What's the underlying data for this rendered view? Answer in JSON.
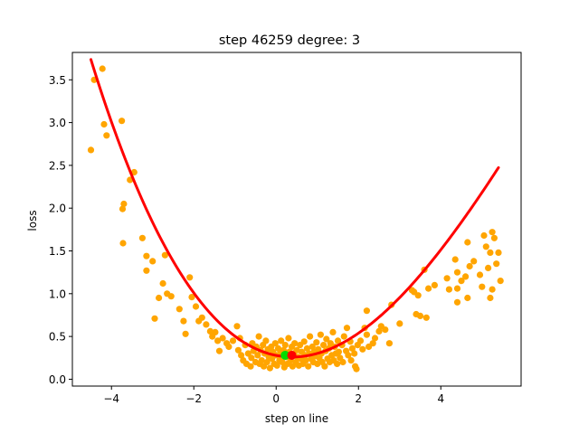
{
  "chart_data": {
    "type": "scatter",
    "title": "step 46259   degree: 3",
    "xlabel": "step on line",
    "ylabel": "loss",
    "xlim": [
      -4.95,
      5.95
    ],
    "ylim": [
      -0.08,
      3.82
    ],
    "xticks": [
      -4,
      -2,
      0,
      2,
      4
    ],
    "yticks": [
      0.0,
      0.5,
      1.0,
      1.5,
      2.0,
      2.5,
      3.0,
      3.5
    ],
    "grid": false,
    "colors": {
      "points": "#ffa500",
      "fit": "#ff0000",
      "current": "#00dd00",
      "minimum": "#ff0000"
    },
    "fit_curve": {
      "degree": 3,
      "coefficients": [
        0.2784,
        -0.0946,
        0.1239,
        -0.00576
      ],
      "x_range": [
        -4.5,
        5.4
      ]
    },
    "current_point": {
      "x": 0.22,
      "y": 0.28
    },
    "min_point": {
      "x": 0.38,
      "y": 0.28
    },
    "points": [
      [
        -4.5,
        2.68
      ],
      [
        -4.42,
        3.5
      ],
      [
        -4.22,
        3.63
      ],
      [
        -4.18,
        2.98
      ],
      [
        -4.12,
        2.85
      ],
      [
        -3.75,
        3.02
      ],
      [
        -3.73,
        1.99
      ],
      [
        -3.7,
        2.05
      ],
      [
        -3.72,
        1.59
      ],
      [
        -3.55,
        2.33
      ],
      [
        -3.45,
        2.42
      ],
      [
        -3.25,
        1.65
      ],
      [
        -3.15,
        1.44
      ],
      [
        -3.15,
        1.27
      ],
      [
        -3.0,
        1.38
      ],
      [
        -2.95,
        0.71
      ],
      [
        -2.85,
        0.95
      ],
      [
        -2.7,
        1.45
      ],
      [
        -2.65,
        1.0
      ],
      [
        -2.75,
        1.12
      ],
      [
        -2.55,
        0.97
      ],
      [
        -2.35,
        0.82
      ],
      [
        -2.25,
        0.68
      ],
      [
        -2.2,
        0.53
      ],
      [
        -2.1,
        1.19
      ],
      [
        -2.05,
        0.96
      ],
      [
        -1.95,
        0.85
      ],
      [
        -1.88,
        0.68
      ],
      [
        -1.8,
        0.72
      ],
      [
        -1.7,
        0.64
      ],
      [
        -1.6,
        0.56
      ],
      [
        -1.55,
        0.5
      ],
      [
        -1.48,
        0.55
      ],
      [
        -1.42,
        0.45
      ],
      [
        -1.38,
        0.33
      ],
      [
        -1.3,
        0.48
      ],
      [
        -1.2,
        0.42
      ],
      [
        -1.15,
        0.38
      ],
      [
        -1.05,
        0.45
      ],
      [
        -0.95,
        0.62
      ],
      [
        -0.92,
        0.34
      ],
      [
        -0.88,
        0.48
      ],
      [
        -0.85,
        0.28
      ],
      [
        -0.8,
        0.22
      ],
      [
        -0.75,
        0.4
      ],
      [
        -0.72,
        0.18
      ],
      [
        -0.68,
        0.3
      ],
      [
        -0.62,
        0.15
      ],
      [
        -0.6,
        0.25
      ],
      [
        -0.58,
        0.42
      ],
      [
        -0.55,
        0.33
      ],
      [
        -0.5,
        0.2
      ],
      [
        -0.48,
        0.38
      ],
      [
        -0.45,
        0.28
      ],
      [
        -0.42,
        0.5
      ],
      [
        -0.4,
        0.18
      ],
      [
        -0.38,
        0.34
      ],
      [
        -0.35,
        0.22
      ],
      [
        -0.32,
        0.4
      ],
      [
        -0.3,
        0.15
      ],
      [
        -0.28,
        0.3
      ],
      [
        -0.25,
        0.45
      ],
      [
        -0.22,
        0.2
      ],
      [
        -0.2,
        0.35
      ],
      [
        -0.18,
        0.26
      ],
      [
        -0.15,
        0.13
      ],
      [
        -0.12,
        0.38
      ],
      [
        -0.1,
        0.24
      ],
      [
        -0.08,
        0.32
      ],
      [
        -0.05,
        0.18
      ],
      [
        -0.02,
        0.42
      ],
      [
        0.0,
        0.28
      ],
      [
        0.02,
        0.16
      ],
      [
        0.05,
        0.36
      ],
      [
        0.08,
        0.22
      ],
      [
        0.1,
        0.3
      ],
      [
        0.12,
        0.45
      ],
      [
        0.15,
        0.2
      ],
      [
        0.18,
        0.34
      ],
      [
        0.2,
        0.14
      ],
      [
        0.22,
        0.4
      ],
      [
        0.25,
        0.26
      ],
      [
        0.28,
        0.18
      ],
      [
        0.3,
        0.48
      ],
      [
        0.32,
        0.32
      ],
      [
        0.35,
        0.22
      ],
      [
        0.38,
        0.38
      ],
      [
        0.4,
        0.15
      ],
      [
        0.42,
        0.3
      ],
      [
        0.45,
        0.42
      ],
      [
        0.48,
        0.2
      ],
      [
        0.5,
        0.34
      ],
      [
        0.52,
        0.26
      ],
      [
        0.55,
        0.16
      ],
      [
        0.58,
        0.4
      ],
      [
        0.6,
        0.24
      ],
      [
        0.62,
        0.32
      ],
      [
        0.65,
        0.18
      ],
      [
        0.68,
        0.44
      ],
      [
        0.7,
        0.28
      ],
      [
        0.72,
        0.22
      ],
      [
        0.75,
        0.36
      ],
      [
        0.78,
        0.15
      ],
      [
        0.8,
        0.3
      ],
      [
        0.82,
        0.5
      ],
      [
        0.85,
        0.24
      ],
      [
        0.88,
        0.38
      ],
      [
        0.9,
        0.2
      ],
      [
        0.92,
        0.32
      ],
      [
        0.95,
        0.27
      ],
      [
        0.98,
        0.43
      ],
      [
        1.0,
        0.18
      ],
      [
        1.02,
        0.35
      ],
      [
        1.05,
        0.25
      ],
      [
        1.08,
        0.52
      ],
      [
        1.1,
        0.3
      ],
      [
        1.12,
        0.2
      ],
      [
        1.15,
        0.4
      ],
      [
        1.18,
        0.15
      ],
      [
        1.2,
        0.33
      ],
      [
        1.22,
        0.47
      ],
      [
        1.25,
        0.24
      ],
      [
        1.28,
        0.36
      ],
      [
        1.3,
        0.2
      ],
      [
        1.32,
        0.42
      ],
      [
        1.35,
        0.28
      ],
      [
        1.38,
        0.55
      ],
      [
        1.4,
        0.22
      ],
      [
        1.42,
        0.38
      ],
      [
        1.45,
        0.3
      ],
      [
        1.48,
        0.18
      ],
      [
        1.5,
        0.45
      ],
      [
        1.52,
        0.32
      ],
      [
        1.55,
        0.25
      ],
      [
        1.6,
        0.4
      ],
      [
        1.62,
        0.2
      ],
      [
        1.65,
        0.5
      ],
      [
        1.7,
        0.33
      ],
      [
        1.72,
        0.6
      ],
      [
        1.75,
        0.28
      ],
      [
        1.8,
        0.44
      ],
      [
        1.82,
        0.22
      ],
      [
        1.85,
        0.36
      ],
      [
        1.9,
        0.3
      ],
      [
        1.92,
        0.15
      ],
      [
        1.95,
        0.12
      ],
      [
        1.98,
        0.4
      ],
      [
        2.05,
        0.45
      ],
      [
        2.1,
        0.35
      ],
      [
        2.15,
        0.6
      ],
      [
        2.2,
        0.52
      ],
      [
        2.2,
        0.8
      ],
      [
        2.25,
        0.38
      ],
      [
        2.35,
        0.42
      ],
      [
        2.4,
        0.48
      ],
      [
        2.5,
        0.56
      ],
      [
        2.55,
        0.62
      ],
      [
        2.65,
        0.58
      ],
      [
        2.75,
        0.42
      ],
      [
        2.8,
        0.87
      ],
      [
        3.0,
        0.65
      ],
      [
        3.3,
        1.04
      ],
      [
        3.35,
        1.02
      ],
      [
        3.4,
        0.76
      ],
      [
        3.45,
        0.98
      ],
      [
        3.5,
        0.74
      ],
      [
        3.6,
        1.28
      ],
      [
        3.65,
        0.72
      ],
      [
        3.7,
        1.06
      ],
      [
        3.85,
        1.1
      ],
      [
        4.15,
        1.18
      ],
      [
        4.2,
        1.05
      ],
      [
        4.35,
        1.4
      ],
      [
        4.4,
        1.25
      ],
      [
        4.4,
        1.06
      ],
      [
        4.4,
        0.9
      ],
      [
        4.5,
        1.15
      ],
      [
        4.6,
        1.2
      ],
      [
        4.65,
        0.95
      ],
      [
        4.65,
        1.6
      ],
      [
        4.7,
        1.32
      ],
      [
        4.8,
        1.38
      ],
      [
        4.95,
        1.22
      ],
      [
        5.0,
        1.08
      ],
      [
        5.05,
        1.68
      ],
      [
        5.1,
        1.55
      ],
      [
        5.15,
        1.3
      ],
      [
        5.2,
        0.95
      ],
      [
        5.2,
        1.48
      ],
      [
        5.25,
        1.72
      ],
      [
        5.25,
        1.05
      ],
      [
        5.3,
        1.65
      ],
      [
        5.35,
        1.35
      ],
      [
        5.4,
        1.48
      ],
      [
        5.45,
        1.15
      ]
    ]
  }
}
